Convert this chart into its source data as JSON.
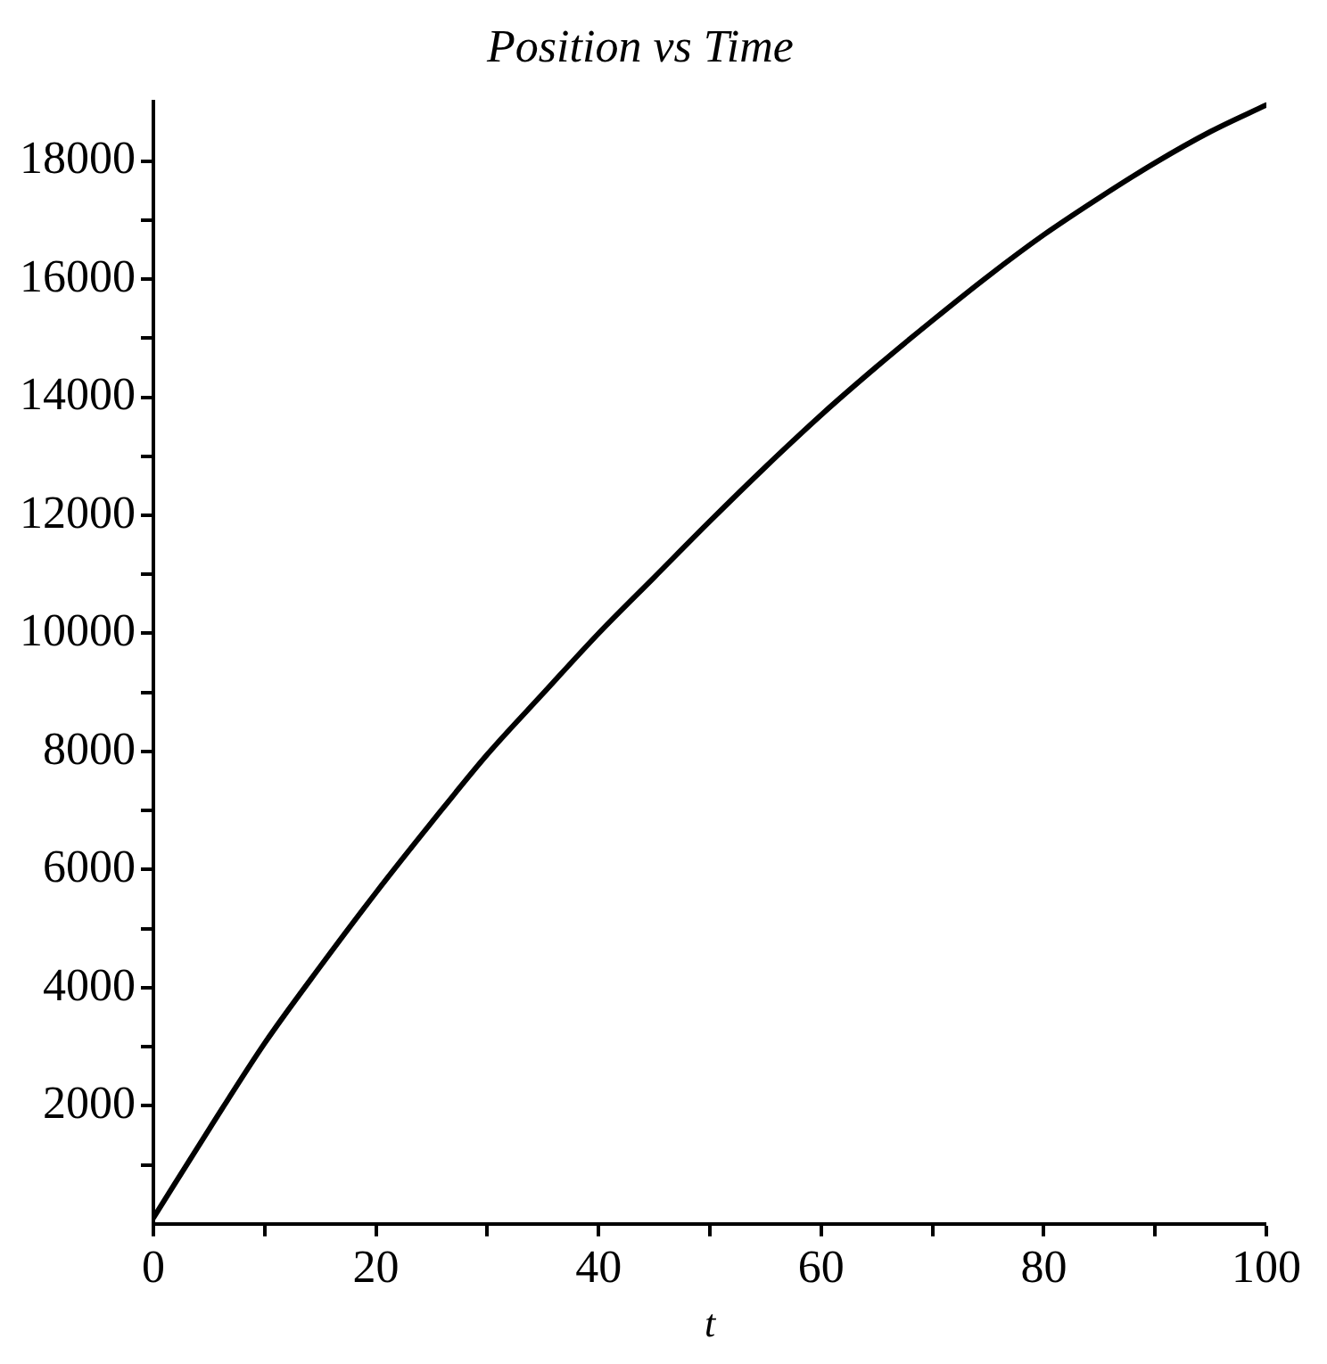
{
  "chart_data": {
    "type": "line",
    "title": "Position vs Time",
    "xlabel": "t",
    "x": [
      0,
      5,
      10,
      15,
      20,
      25,
      30,
      35,
      40,
      45,
      50,
      55,
      60,
      65,
      70,
      75,
      80,
      85,
      90,
      95,
      100
    ],
    "series": [
      {
        "color": "#000000",
        "values": [
          100,
          1600,
          3060,
          4360,
          5610,
          6800,
          7950,
          8980,
          10000,
          10950,
          11900,
          12820,
          13700,
          14520,
          15300,
          16050,
          16750,
          17380,
          17970,
          18500,
          18950
        ]
      }
    ],
    "xlim": [
      0,
      100
    ],
    "ylim": [
      0,
      19000
    ],
    "xticks": [
      0,
      {
        "value": 10,
        "label": null
      },
      20,
      {
        "value": 30,
        "label": null
      },
      40,
      {
        "value": 50,
        "label": null
      },
      60,
      {
        "value": 70,
        "label": null
      },
      80,
      {
        "value": 90,
        "label": null
      },
      100
    ],
    "yticks": [
      {
        "value": 1000,
        "label": null
      },
      2000,
      {
        "value": 3000,
        "label": null
      },
      4000,
      {
        "value": 5000,
        "label": null
      },
      6000,
      {
        "value": 7000,
        "label": null
      },
      8000,
      {
        "value": 9000,
        "label": null
      },
      10000,
      {
        "value": 11000,
        "label": null
      },
      12000,
      {
        "value": 13000,
        "label": null
      },
      14000,
      {
        "value": 15000,
        "label": null
      },
      16000,
      {
        "value": 17000,
        "label": null
      },
      18000
    ],
    "grid": false,
    "legend": false,
    "marker": "none",
    "line_style": "solid"
  }
}
